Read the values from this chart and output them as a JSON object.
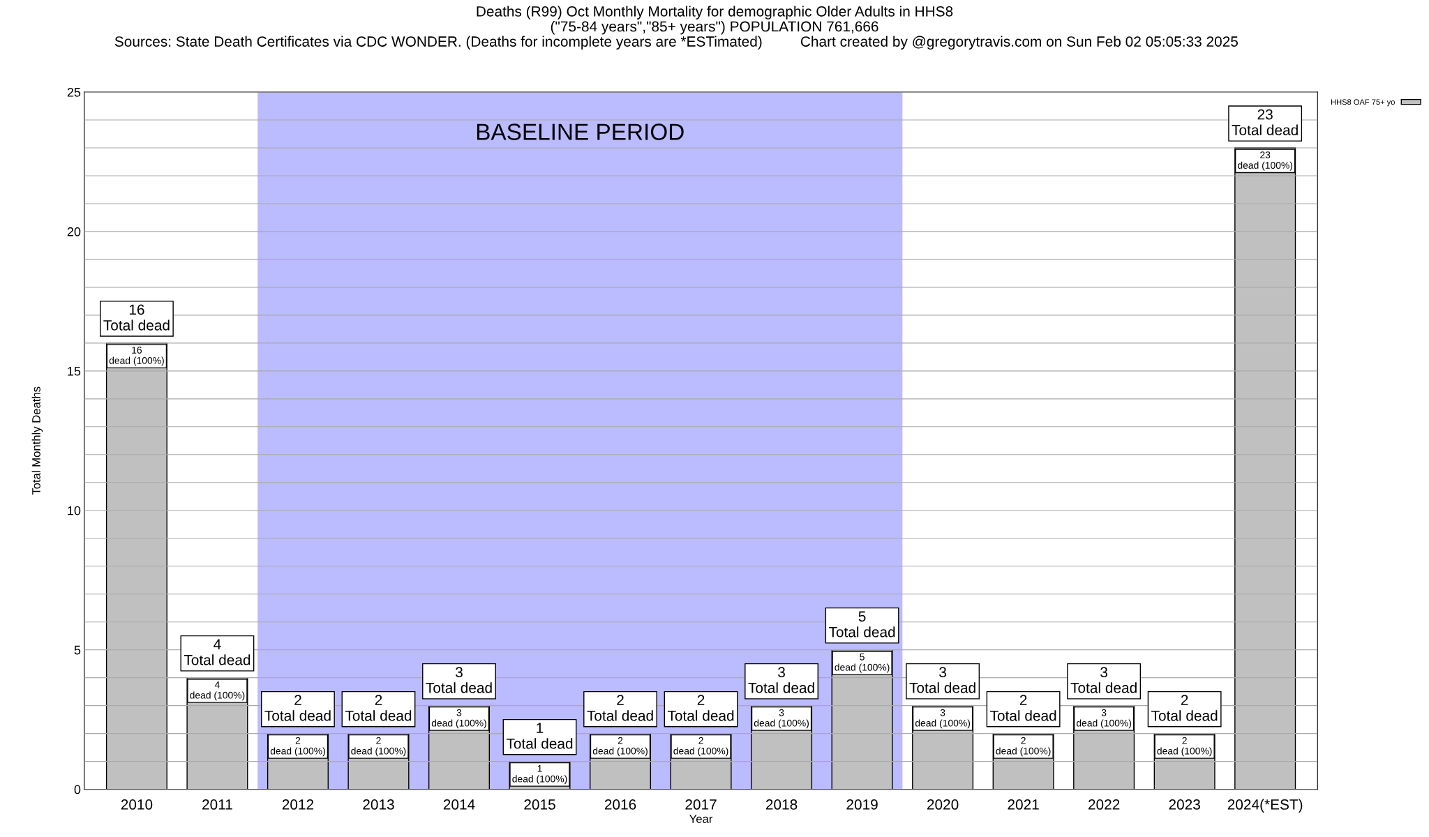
{
  "chart_data": {
    "type": "bar",
    "title": "Deaths (R99) Oct Monthly Mortality for demographic Older Adults in HHS8",
    "subtitle": "(\"75-84 years\",\"85+ years\") POPULATION 761,666",
    "annotations": [
      "Sources: State Death Certificates via CDC WONDER. (Deaths for incomplete years are *ESTimated)",
      "Chart created by @gregorytravis.com on Sun Feb 02 05:05:33 2025"
    ],
    "xlabel": "Year",
    "ylabel": "Total Monthly Deaths",
    "categories": [
      "2010",
      "2011",
      "2012",
      "2013",
      "2014",
      "2015",
      "2016",
      "2017",
      "2018",
      "2019",
      "2020",
      "2021",
      "2022",
      "2023",
      "2024(*EST)"
    ],
    "series": [
      {
        "name": "HHS8 OAF 75+ yo",
        "color": "#c0c0c0",
        "values": [
          16,
          4,
          2,
          2,
          3,
          1,
          2,
          2,
          3,
          5,
          3,
          2,
          3,
          2,
          23
        ],
        "value_labels": [
          "16\ndead (100%)",
          "4\ndead (100%)",
          "2\ndead (100%)",
          "2\ndead (100%)",
          "3\ndead (100%)",
          "1\ndead (100%)",
          "2\ndead (100%)",
          "2\ndead (100%)",
          "3\ndead (100%)",
          "5\ndead (100%)",
          "3\ndead (100%)",
          "2\ndead (100%)",
          "3\ndead (100%)",
          "2\ndead (100%)",
          "23\ndead (100%)"
        ]
      }
    ],
    "totals": [
      "16\nTotal dead",
      "4\nTotal dead",
      "2\nTotal dead",
      "2\nTotal dead",
      "3\nTotal dead",
      "1\nTotal dead",
      "2\nTotal dead",
      "2\nTotal dead",
      "3\nTotal dead",
      "5\nTotal dead",
      "3\nTotal dead",
      "2\nTotal dead",
      "3\nTotal dead",
      "2\nTotal dead",
      "23\nTotal dead"
    ],
    "bands": [
      {
        "axis": "x",
        "from": "2012",
        "to": "2019",
        "label": "BASELINE PERIOD",
        "color": "#bbbbff"
      }
    ],
    "ylim": [
      0,
      25
    ],
    "yticks": [
      0,
      {
        "value": 1,
        "label": null
      },
      {
        "value": 2,
        "label": null
      },
      {
        "value": 3,
        "label": null
      },
      {
        "value": 4,
        "label": null
      },
      5,
      {
        "value": 6,
        "label": null
      },
      {
        "value": 7,
        "label": null
      },
      {
        "value": 8,
        "label": null
      },
      {
        "value": 9,
        "label": null
      },
      10,
      {
        "value": 11,
        "label": null
      },
      {
        "value": 12,
        "label": null
      },
      {
        "value": 13,
        "label": null
      },
      {
        "value": 14,
        "label": null
      },
      15,
      {
        "value": 16,
        "label": null
      },
      {
        "value": 17,
        "label": null
      },
      {
        "value": 18,
        "label": null
      },
      {
        "value": 19,
        "label": null
      },
      20,
      {
        "value": 21,
        "label": null
      },
      {
        "value": 22,
        "label": null
      },
      {
        "value": 23,
        "label": null
      },
      {
        "value": 24,
        "label": null
      },
      25
    ],
    "grid": "y",
    "legend": "top right"
  }
}
